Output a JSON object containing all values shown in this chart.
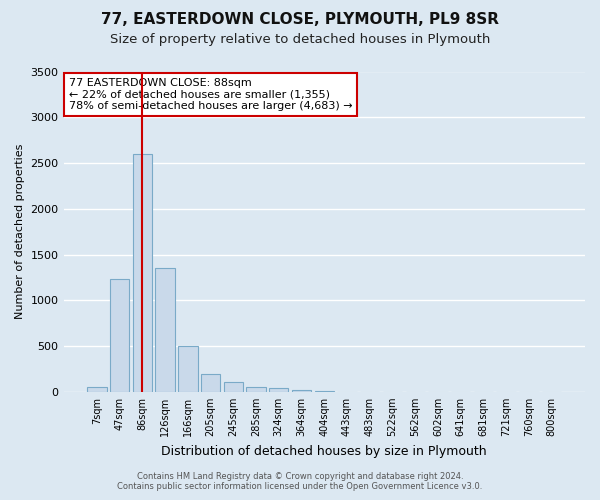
{
  "title": "77, EASTERDOWN CLOSE, PLYMOUTH, PL9 8SR",
  "subtitle": "Size of property relative to detached houses in Plymouth",
  "xlabel": "Distribution of detached houses by size in Plymouth",
  "ylabel": "Number of detached properties",
  "bar_labels": [
    "7sqm",
    "47sqm",
    "86sqm",
    "126sqm",
    "166sqm",
    "205sqm",
    "245sqm",
    "285sqm",
    "324sqm",
    "364sqm",
    "404sqm",
    "443sqm",
    "483sqm",
    "522sqm",
    "562sqm",
    "602sqm",
    "641sqm",
    "681sqm",
    "721sqm",
    "760sqm",
    "800sqm"
  ],
  "bar_values": [
    50,
    1230,
    2600,
    1350,
    500,
    200,
    110,
    55,
    40,
    20,
    5,
    2,
    2,
    0,
    0,
    0,
    0,
    0,
    0,
    0,
    0
  ],
  "bar_color": "#c9d9ea",
  "bar_edge_color": "#7aaac8",
  "bar_edge_width": 0.8,
  "vline_x": 2,
  "vline_color": "#cc0000",
  "ylim": [
    0,
    3500
  ],
  "yticks": [
    0,
    500,
    1000,
    1500,
    2000,
    2500,
    3000,
    3500
  ],
  "annotation_title": "77 EASTERDOWN CLOSE: 88sqm",
  "annotation_line1": "← 22% of detached houses are smaller (1,355)",
  "annotation_line2": "78% of semi-detached houses are larger (4,683) →",
  "annotation_box_color": "#ffffff",
  "annotation_box_edge": "#cc0000",
  "footer1": "Contains HM Land Registry data © Crown copyright and database right 2024.",
  "footer2": "Contains public sector information licensed under the Open Government Licence v3.0.",
  "bg_color": "#dce8f2",
  "plot_bg_color": "#dce8f2",
  "grid_color": "#ffffff",
  "title_fontsize": 11,
  "subtitle_fontsize": 9.5
}
